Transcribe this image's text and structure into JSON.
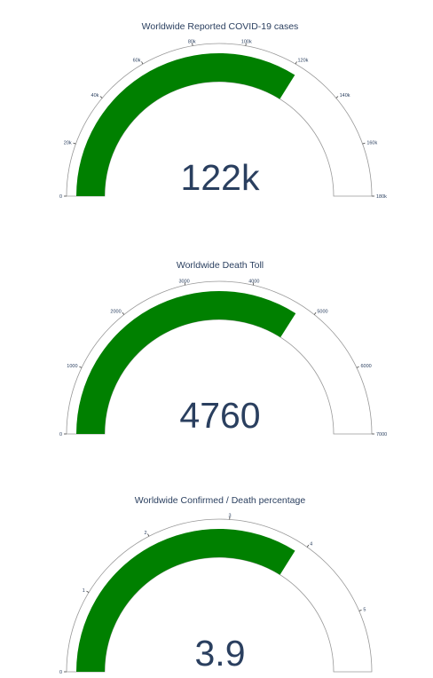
{
  "chart_data": [
    {
      "type": "gauge",
      "title": "Worldwide Reported COVID-19 cases",
      "value": 122000,
      "display_value": "122k",
      "range": [
        0,
        180000
      ],
      "ticks": [
        {
          "value": 0,
          "label": "0"
        },
        {
          "value": 20000,
          "label": "20k"
        },
        {
          "value": 40000,
          "label": "40k"
        },
        {
          "value": 60000,
          "label": "60k"
        },
        {
          "value": 80000,
          "label": "80k"
        },
        {
          "value": 100000,
          "label": "100k"
        },
        {
          "value": 120000,
          "label": "120k"
        },
        {
          "value": 140000,
          "label": "140k"
        },
        {
          "value": 160000,
          "label": "160k"
        },
        {
          "value": 180000,
          "label": "180k"
        }
      ],
      "bar_color": "#008000"
    },
    {
      "type": "gauge",
      "title": "Worldwide Death Toll",
      "value": 4760,
      "display_value": "4760",
      "range": [
        0,
        7000
      ],
      "ticks": [
        {
          "value": 0,
          "label": "0"
        },
        {
          "value": 1000,
          "label": "1000"
        },
        {
          "value": 2000,
          "label": "2000"
        },
        {
          "value": 3000,
          "label": "3000"
        },
        {
          "value": 4000,
          "label": "4000"
        },
        {
          "value": 5000,
          "label": "5000"
        },
        {
          "value": 6000,
          "label": "6000"
        },
        {
          "value": 7000,
          "label": "7000"
        }
      ],
      "bar_color": "#008000"
    },
    {
      "type": "gauge",
      "title": "Worldwide Confirmed / Death percentage",
      "value": 3.9,
      "display_value": "3.9",
      "range": [
        0,
        5.75
      ],
      "ticks": [
        {
          "value": 0,
          "label": "0"
        },
        {
          "value": 1,
          "label": "1"
        },
        {
          "value": 2,
          "label": "2"
        },
        {
          "value": 3,
          "label": "3"
        },
        {
          "value": 4,
          "label": "4"
        },
        {
          "value": 5,
          "label": "5"
        }
      ],
      "bar_color": "#008000"
    }
  ]
}
